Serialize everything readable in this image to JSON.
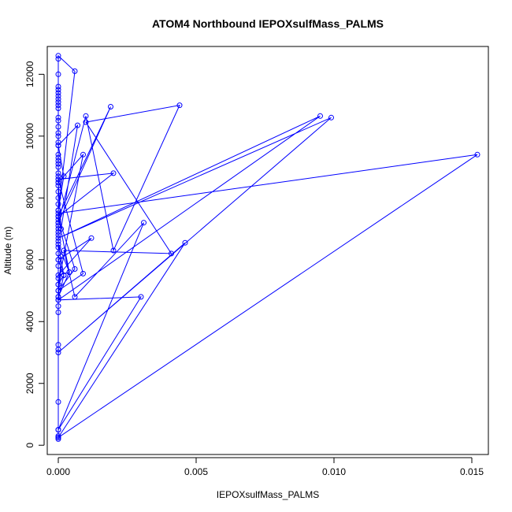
{
  "chart_data": {
    "type": "line",
    "title": "ATOM4 Northbound IEPOXsulfMass_PALMS",
    "xlabel": "IEPOXsulfMass_PALMS",
    "ylabel": "Altitude (m)",
    "xlim": [
      -0.0004,
      0.0156
    ],
    "ylim": [
      -300,
      12900
    ],
    "x_ticks": [
      0.0,
      0.005,
      0.01,
      0.015
    ],
    "x_tick_labels": [
      "0.000",
      "0.005",
      "0.010",
      "0.015"
    ],
    "y_ticks": [
      0,
      2000,
      4000,
      6000,
      8000,
      10000,
      12000
    ],
    "y_tick_labels": [
      "0",
      "2000",
      "4000",
      "6000",
      "8000",
      "10000",
      "12000"
    ],
    "grid": false,
    "markers": "open-circle",
    "series": [
      {
        "color": "#0000ff",
        "x": [
          0.0,
          0.0,
          0.0,
          0.0,
          0.0,
          0.0,
          0.0,
          0.0,
          0.0,
          0.0,
          0.0,
          0.0,
          0.0,
          0.0,
          0.0,
          0.0,
          0.0,
          0.0,
          0.0,
          0.0,
          0.0,
          0.0,
          0.0,
          0.0,
          0.0,
          0.0,
          0.0,
          0.0,
          0.0,
          0.0,
          0.0,
          0.0,
          0.0,
          0.0,
          0.0,
          0.0,
          0.0,
          0.0,
          0.0,
          0.0,
          0.0,
          0.0,
          0.0,
          0.0,
          0.0,
          0.0,
          0.0,
          0.0,
          0.0,
          0.0,
          0.0,
          0.0,
          0.0,
          0.0,
          0.0,
          0.0,
          0.0,
          0.0,
          0.0006,
          0.0,
          0.0002,
          0.0,
          0.0007,
          0.0001,
          0.0,
          0.0009,
          0.0,
          0.0002,
          0.0,
          0.0012,
          0.0,
          0.0004,
          0.0,
          0.0001,
          0.0,
          0.0002,
          0.0,
          0.0004,
          0.0,
          0.0006,
          0.0,
          0.0009,
          0.0,
          0.002,
          0.0,
          0.0019,
          0.0,
          0.001,
          0.002,
          0.0044,
          0.001,
          0.0041,
          0.0002,
          0.0006,
          0.0031,
          0.0,
          0.003,
          0.0,
          0.0095,
          0.0,
          0.0099,
          0.0,
          0.0046,
          0.0,
          0.0152,
          0.0
        ],
        "y": [
          200,
          250,
          300,
          500,
          1400,
          3100,
          3250,
          4300,
          4500,
          4700,
          4800,
          5000,
          5200,
          5400,
          5800,
          6000,
          6200,
          6400,
          6600,
          6800,
          6900,
          7000,
          7100,
          7200,
          7300,
          7400,
          7600,
          7800,
          8000,
          8200,
          8400,
          8500,
          8600,
          8700,
          8800,
          9000,
          9100,
          9200,
          9300,
          9400,
          9700,
          9800,
          10000,
          10100,
          10300,
          10500,
          10600,
          10900,
          11000,
          11100,
          11200,
          11300,
          11400,
          11500,
          11600,
          12000,
          12500,
          12600,
          12100,
          7600,
          8700,
          9700,
          10350,
          7000,
          8500,
          9400,
          5200,
          5500,
          6000,
          6700,
          5500,
          5600,
          4800,
          6100,
          4700,
          5500,
          6500,
          5600,
          7400,
          5700,
          5000,
          5550,
          8600,
          8800,
          7400,
          10950,
          7200,
          10650,
          6300,
          11000,
          10450,
          6200,
          6300,
          4800,
          7200,
          500,
          4800,
          4700,
          10650,
          6700,
          10600,
          3000,
          6550,
          250,
          9400,
          7500
        ]
      }
    ]
  }
}
